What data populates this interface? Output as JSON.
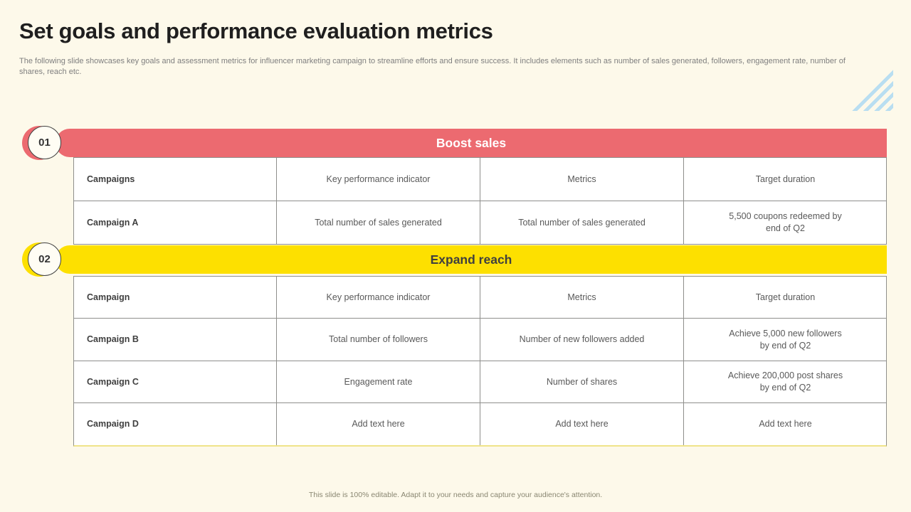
{
  "slide": {
    "title": "Set goals and performance evaluation metrics",
    "subtitle": "The following slide showcases key goals and assessment metrics for influencer marketing campaign to streamline efforts and ensure success. It includes elements such as number of sales generated, followers, engagement rate, number of shares, reach etc.",
    "footer": "This slide is 100% editable.  Adapt it to your needs and capture your audience's attention."
  },
  "colors": {
    "background": "#fdf9ea",
    "red_accent": "#ec6a70",
    "yellow_accent": "#fde000",
    "stripe_blue": "#b9def1",
    "table_border": "#8f8f8c",
    "banner1_text": "#ffffff",
    "banner2_text": "#3f3f3f"
  },
  "decor": {
    "stripes_icon": "diagonal-stripes-triangle"
  },
  "sections": [
    {
      "number": "01",
      "banner_label": "Boost sales",
      "table": {
        "headers": [
          "Campaigns",
          "Key performance indicator",
          "Metrics",
          "Target duration"
        ],
        "rows": [
          [
            "Campaign A",
            "Total number of sales generated",
            "Total number of sales generated",
            "5,500 coupons redeemed by\nend of Q2"
          ]
        ]
      }
    },
    {
      "number": "02",
      "banner_label": "Expand reach",
      "table": {
        "headers": [
          "Campaign",
          "Key performance indicator",
          "Metrics",
          "Target duration"
        ],
        "rows": [
          [
            "Campaign B",
            "Total number of followers",
            "Number of new followers added",
            "Achieve 5,000 new followers\nby end of Q2"
          ],
          [
            "Campaign C",
            "Engagement rate",
            "Number of shares",
            "Achieve 200,000 post shares\nby end of Q2"
          ],
          [
            "Campaign D",
            "Add text here",
            "Add text here",
            "Add text here"
          ]
        ]
      }
    }
  ]
}
